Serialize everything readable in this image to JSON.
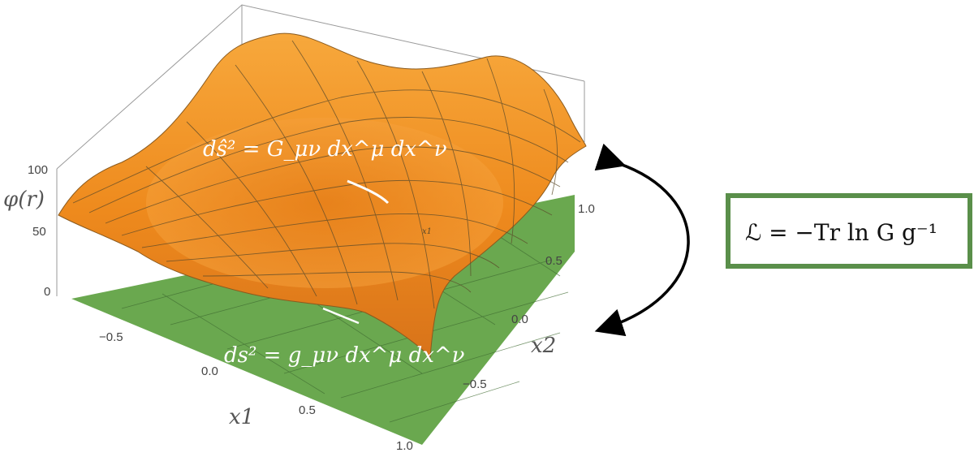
{
  "figure": {
    "z_axis": {
      "label": "φ(r)",
      "ticks": [
        "100",
        "50",
        "0"
      ]
    },
    "x1_axis": {
      "label": "x1",
      "ticks": [
        "−0.5",
        "0.0",
        "0.5",
        "1.0"
      ]
    },
    "x2_axis": {
      "label": "x2",
      "ticks": [
        "1.0",
        "0.5",
        "0.0",
        "−0.5"
      ]
    },
    "small_surface_label": "x1",
    "upper_metric": "dŝ² = G_μν dx^μ dx^ν",
    "lower_metric": "ds² = g_μν dx^μ dx^ν",
    "boxed_equation": "ℒ = −Tr ln G g⁻¹"
  },
  "colors": {
    "surface": "#f29020",
    "surface_dark": "#c85f10",
    "floor": "#6aa84f",
    "box_border": "#5a8f4a",
    "grid": "#5b4a2a"
  }
}
